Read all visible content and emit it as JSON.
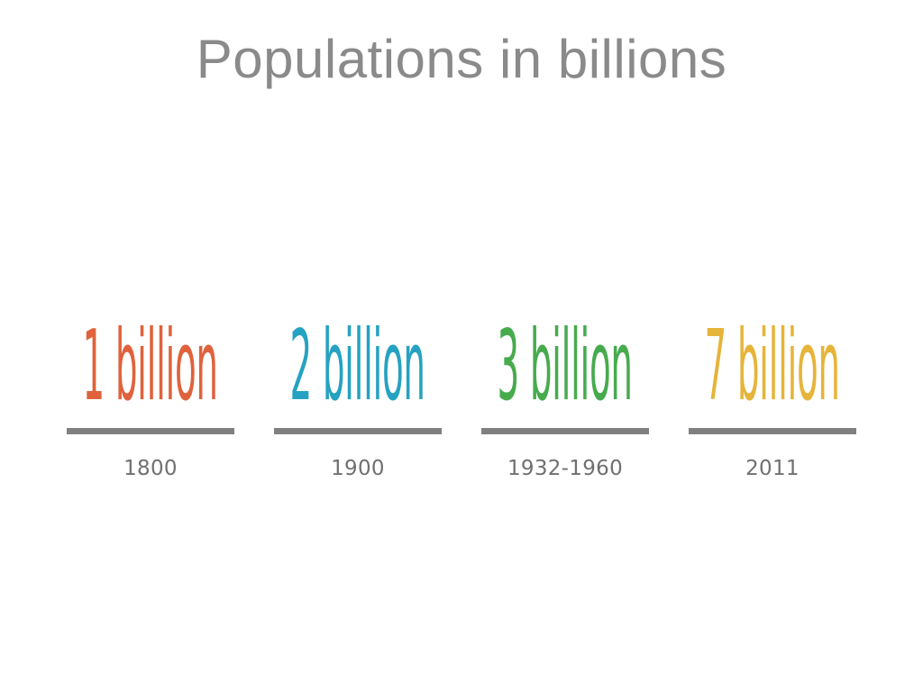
{
  "title": "Populations in billions",
  "milestones": [
    {
      "label": "1 billion",
      "year": "1800",
      "color": "#e0623c"
    },
    {
      "label": "2 billion",
      "year": "1900",
      "color": "#25a2c1"
    },
    {
      "label": "3 billion",
      "year": "1932-1960",
      "color": "#47ab4e"
    },
    {
      "label": "7 billion",
      "year": "2011",
      "color": "#e6b43a"
    }
  ]
}
